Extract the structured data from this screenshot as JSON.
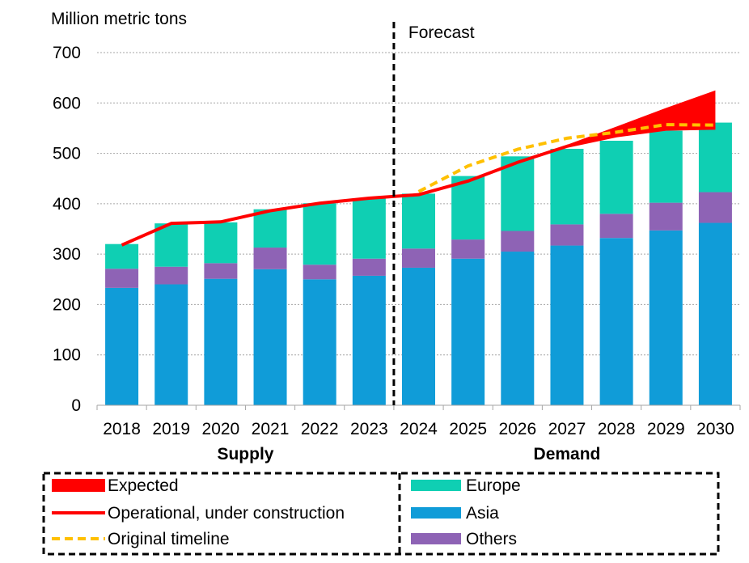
{
  "chart_data": {
    "type": "bar",
    "ylabel": "Million metric tons",
    "ylim": [
      0,
      700
    ],
    "yticks": [
      0,
      100,
      200,
      300,
      400,
      500,
      600,
      700
    ],
    "grid": true,
    "forecast_label": "Forecast",
    "forecast_start_category": "2024",
    "groups": [
      {
        "label": "Supply",
        "categories": [
          "2018",
          "2019",
          "2020",
          "2021",
          "2022",
          "2023"
        ]
      },
      {
        "label": "Demand",
        "categories": [
          "2024",
          "2025",
          "2026",
          "2027",
          "2028",
          "2029",
          "2030"
        ]
      }
    ],
    "categories": [
      "2018",
      "2019",
      "2020",
      "2021",
      "2022",
      "2023",
      "2024",
      "2025",
      "2026",
      "2027",
      "2028",
      "2029",
      "2030"
    ],
    "series": [
      {
        "name": "Asia",
        "kind": "stacked-bar",
        "color": "#109cd8",
        "values": [
          233,
          240,
          251,
          270,
          250,
          257,
          273,
          291,
          305,
          317,
          332,
          347,
          362
        ]
      },
      {
        "name": "Others",
        "kind": "stacked-bar",
        "color": "#8e63b5",
        "values": [
          38,
          35,
          31,
          43,
          29,
          34,
          38,
          38,
          41,
          42,
          48,
          55,
          61
        ]
      },
      {
        "name": "Europe",
        "kind": "stacked-bar",
        "color": "#0fcfb3",
        "values": [
          49,
          86,
          81,
          76,
          122,
          120,
          109,
          126,
          148,
          150,
          145,
          143,
          138
        ]
      },
      {
        "name": "Operational, under construction",
        "kind": "line",
        "color": "#ff0000",
        "values": [
          318,
          361,
          364,
          386,
          401,
          411,
          418,
          445,
          482,
          514,
          535,
          548,
          550
        ]
      },
      {
        "name": "Original timeline",
        "kind": "dashed-line",
        "color": "#ffc000",
        "values": [
          null,
          null,
          null,
          null,
          null,
          null,
          424,
          475,
          508,
          530,
          542,
          557,
          556
        ]
      },
      {
        "name": "Expected",
        "kind": "band",
        "color": "#ff0000",
        "lower": [
          null,
          null,
          null,
          null,
          null,
          null,
          null,
          null,
          null,
          514,
          535,
          548,
          550
        ],
        "upper": [
          null,
          null,
          null,
          null,
          null,
          null,
          null,
          null,
          null,
          517,
          553,
          590,
          625
        ]
      }
    ],
    "legend": {
      "placement": "bottom",
      "left": [
        {
          "name": "Expected",
          "swatch": "band",
          "color": "#ff0000"
        },
        {
          "name": "Operational, under construction",
          "swatch": "line",
          "color": "#ff0000"
        },
        {
          "name": "Original timeline",
          "swatch": "dashed-line",
          "color": "#ffc000"
        }
      ],
      "right": [
        {
          "name": "Europe",
          "swatch": "bar",
          "color": "#0fcfb3"
        },
        {
          "name": "Asia",
          "swatch": "bar",
          "color": "#109cd8"
        },
        {
          "name": "Others",
          "swatch": "bar",
          "color": "#8e63b5"
        }
      ]
    }
  }
}
